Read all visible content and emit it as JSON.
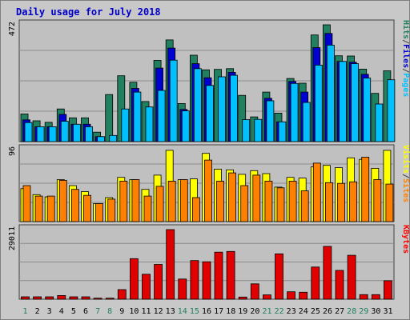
{
  "chart_data": {
    "type": "bar",
    "title": "Daily usage for July 2018",
    "x": [
      "1",
      "2",
      "3",
      "4",
      "5",
      "6",
      "7",
      "8",
      "9",
      "10",
      "11",
      "12",
      "13",
      "14",
      "15",
      "16",
      "17",
      "18",
      "19",
      "20",
      "21",
      "22",
      "23",
      "24",
      "25",
      "26",
      "27",
      "28",
      "29",
      "30",
      "31"
    ],
    "weekend_days": [
      "1",
      "7",
      "8",
      "14",
      "15",
      "21",
      "22",
      "28",
      "29"
    ],
    "panels": [
      {
        "id": "hits",
        "ymax_label": "472",
        "ylim": [
          0,
          472
        ],
        "legend": [
          {
            "name": "Pages",
            "color": "#00c0ff"
          },
          {
            "name": "/",
            "color": "#404040"
          },
          {
            "name": "Files",
            "color": "#0000d0"
          },
          {
            "name": "/",
            "color": "#404040"
          },
          {
            "name": "Hits",
            "color": "#208060"
          }
        ],
        "series": [
          {
            "name": "Hits",
            "color": "#208060",
            "values": [
              112,
              84,
              78,
              132,
              96,
              96,
              38,
              190,
              266,
              240,
              162,
              328,
              411,
              154,
              349,
              290,
              292,
              295,
              187,
              100,
              200,
              115,
              255,
              236,
              431,
              472,
              347,
              346,
              293,
              195,
              286
            ]
          },
          {
            "name": "Files",
            "color": "#0000d0",
            "values": [
              88,
              60,
              60,
              110,
              70,
              70,
              20,
              0,
              0,
              215,
              0,
              297,
              378,
              130,
              315,
              258,
              0,
              280,
              0,
              0,
              175,
              80,
              243,
              200,
              380,
              437,
              324,
              321,
              272,
              0,
              0
            ]
          },
          {
            "name": "Pages",
            "color": "#00c0ff",
            "values": [
              77,
              60,
              60,
              82,
              70,
              60,
              20,
              25,
              132,
              200,
              140,
              207,
              329,
              124,
              295,
              227,
              262,
              268,
              89,
              90,
              165,
              80,
              235,
              158,
              309,
              390,
              324,
              315,
              257,
              152,
              250
            ]
          }
        ]
      },
      {
        "id": "visits",
        "ymax_label": "96",
        "ylim": [
          0,
          96
        ],
        "legend": [
          {
            "name": "Sites",
            "color": "#ff8000"
          },
          {
            "name": "/",
            "color": "#404040"
          },
          {
            "name": "Visits",
            "color": "#ffff00"
          }
        ],
        "series": [
          {
            "name": "Visits",
            "color": "#ffff00",
            "values": [
              44,
              36,
              33,
              56,
              48,
              40,
              24,
              32,
              59,
              56,
              43,
              62,
              95,
              56,
              57,
              91,
              70,
              69,
              63,
              68,
              64,
              46,
              59,
              58,
              73,
              75,
              72,
              85,
              83,
              71,
              95
            ]
          },
          {
            "name": "Sites",
            "color": "#ff8000",
            "values": [
              48,
              34,
              34,
              55,
              43,
              35,
              24,
              30,
              54,
              56,
              34,
              47,
              54,
              56,
              32,
              82,
              54,
              65,
              48,
              62,
              54,
              45,
              54,
              41,
              78,
              52,
              51,
              53,
              86,
              56,
              50
            ]
          }
        ]
      },
      {
        "id": "kbytes",
        "ymax_label": "29011",
        "ylim": [
          0,
          29011
        ],
        "legend": [
          {
            "name": "KBytes",
            "color": "#ff0000"
          }
        ],
        "series": [
          {
            "name": "KBytes",
            "color": "#e00000",
            "values": [
              1000,
              1000,
              1000,
              1550,
              1000,
              1000,
              420,
              420,
              4000,
              16900,
              10400,
              14500,
              29011,
              8400,
              16100,
              15600,
              19600,
              19900,
              900,
              6400,
              1800,
              18900,
              3100,
              2900,
              13400,
              22000,
              12000,
              18300,
              1900,
              1900,
              7700
            ]
          }
        ]
      }
    ]
  }
}
